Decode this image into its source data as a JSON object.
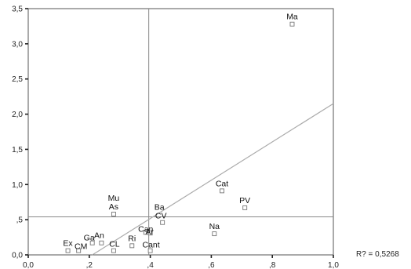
{
  "chart_data": {
    "type": "scatter",
    "title": "",
    "xlabel": "",
    "ylabel": "",
    "xlim": [
      0.0,
      1.0
    ],
    "ylim": [
      0.0,
      3.5
    ],
    "x_ticks": [
      {
        "value": 0.0,
        "label": "0,0"
      },
      {
        "value": 0.2,
        "label": ",2"
      },
      {
        "value": 0.4,
        "label": ",4"
      },
      {
        "value": 0.6,
        "label": ",6"
      },
      {
        "value": 0.8,
        "label": ",8"
      },
      {
        "value": 1.0,
        "label": "1,0"
      }
    ],
    "y_ticks": [
      {
        "value": 0.0,
        "label": "0,0"
      },
      {
        "value": 0.5,
        "label": ",5"
      },
      {
        "value": 1.0,
        "label": "1,0"
      },
      {
        "value": 1.5,
        "label": "1,5"
      },
      {
        "value": 2.0,
        "label": "2,0"
      },
      {
        "value": 2.5,
        "label": "2,5"
      },
      {
        "value": 3.0,
        "label": "3,0"
      },
      {
        "value": 3.5,
        "label": "3,5"
      }
    ],
    "points": [
      {
        "label": "Ma",
        "x": 0.865,
        "y": 3.28
      },
      {
        "label": "Cat",
        "x": 0.635,
        "y": 0.91
      },
      {
        "label": "PV",
        "x": 0.71,
        "y": 0.67
      },
      {
        "label": "Mu",
        "x": 0.28,
        "y": 0.58
      },
      {
        "label": "As",
        "x": 0.28,
        "y": 0.58
      },
      {
        "label": "Ba",
        "x": 0.44,
        "y": 0.46
      },
      {
        "label": "CV",
        "x": 0.44,
        "y": 0.46
      },
      {
        "label": "Na",
        "x": 0.61,
        "y": 0.3
      },
      {
        "label": "Can",
        "x": 0.385,
        "y": 0.32
      },
      {
        "label": "Ar",
        "x": 0.4,
        "y": 0.31
      },
      {
        "label": "Ga",
        "x": 0.21,
        "y": 0.17
      },
      {
        "label": "An",
        "x": 0.24,
        "y": 0.17
      },
      {
        "label": "Ri",
        "x": 0.34,
        "y": 0.13
      },
      {
        "label": "Ex",
        "x": 0.13,
        "y": 0.06
      },
      {
        "label": "CM",
        "x": 0.165,
        "y": 0.06
      },
      {
        "label": "CL",
        "x": 0.28,
        "y": 0.06
      },
      {
        "label": "Cant",
        "x": 0.4,
        "y": 0.06
      }
    ],
    "reference_lines": {
      "x": 0.395,
      "y": 0.54
    },
    "regression_line": {
      "x1": 0.21,
      "y1": 0.0,
      "x2": 1.0,
      "y2": 2.15
    },
    "r_squared_label": "R? = 0,5268",
    "grid": false,
    "legend": "none"
  }
}
